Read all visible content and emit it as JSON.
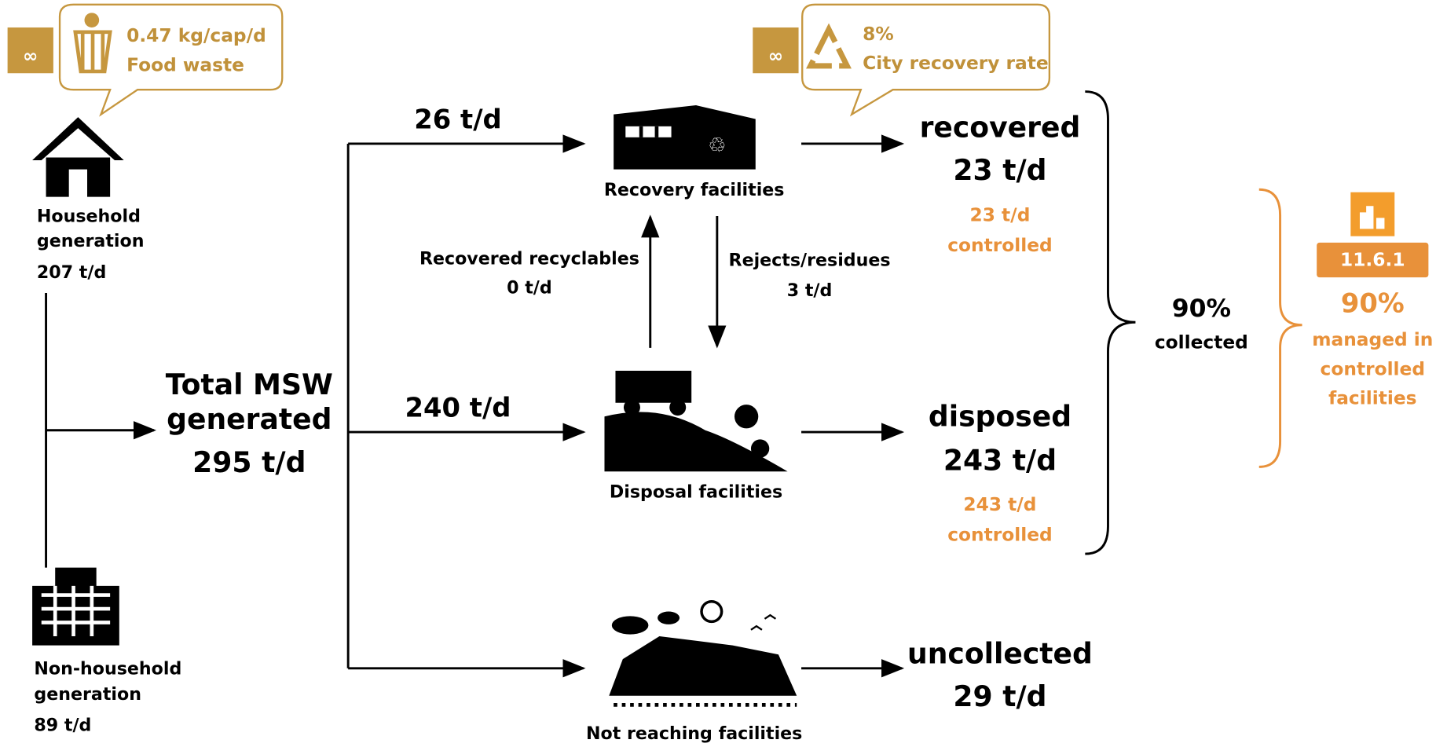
{
  "callouts": {
    "food_waste": {
      "value": "0.47 kg/cap/d",
      "label": "Food waste"
    },
    "recovery_rate": {
      "value": "8%",
      "label": "City recovery rate"
    }
  },
  "sources": {
    "household": {
      "label": [
        "Household",
        "generation"
      ],
      "amount": "207 t/d"
    },
    "non_household": {
      "label": [
        "Non-household",
        "generation"
      ],
      "amount": "89 t/d"
    }
  },
  "total": {
    "label": [
      "Total MSW",
      "generated"
    ],
    "amount": "295 t/d"
  },
  "flows": {
    "to_recovery": "26 t/d",
    "to_disposal": "240 t/d",
    "recovered_recyclables": {
      "label": "Recovered recyclables",
      "amount": "0 t/d"
    },
    "rejects": {
      "label": "Rejects/residues",
      "amount": "3 t/d"
    }
  },
  "facilities": {
    "recovery": "Recovery facilities",
    "disposal": "Disposal facilities",
    "not_reaching": "Not reaching facilities"
  },
  "outcomes": {
    "recovered": {
      "label": "recovered",
      "amount": "23 t/d",
      "controlled": [
        "23 t/d",
        "controlled"
      ]
    },
    "disposed": {
      "label": "disposed",
      "amount": "243 t/d",
      "controlled": [
        "243 t/d",
        "controlled"
      ]
    },
    "uncollected": {
      "label": "uncollected",
      "amount": "29 t/d"
    }
  },
  "collected": {
    "value": "90%",
    "label": "collected"
  },
  "indicator": {
    "code": "11.6.1",
    "value": "90%",
    "label": [
      "managed in",
      "controlled",
      "facilities"
    ]
  }
}
